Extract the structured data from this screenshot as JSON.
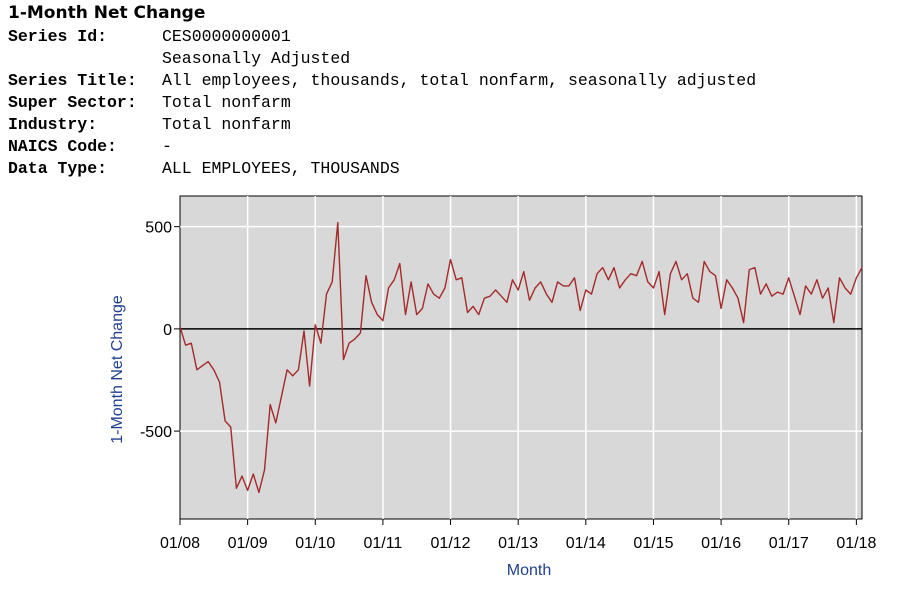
{
  "header": {
    "title": "1-Month Net Change",
    "fields": [
      {
        "label": "Series Id:",
        "value": "CES0000000001"
      },
      {
        "label": "",
        "value": "Seasonally Adjusted"
      },
      {
        "label": "Series Title:",
        "value": "All employees, thousands, total nonfarm, seasonally adjusted"
      },
      {
        "label": "Super Sector:",
        "value": "Total nonfarm"
      },
      {
        "label": "Industry:",
        "value": "Total nonfarm"
      },
      {
        "label": "NAICS Code:",
        "value": "-"
      },
      {
        "label": "Data Type:",
        "value": "ALL EMPLOYEES, THOUSANDS"
      }
    ]
  },
  "chart_data": {
    "type": "line",
    "title": "",
    "xlabel": "Month",
    "ylabel": "1-Month Net Change",
    "xlim": [
      "2008-01",
      "2018-02"
    ],
    "ylim": [
      -930,
      650
    ],
    "yticks": [
      500,
      0,
      -500
    ],
    "xticks": [
      "01/08",
      "01/09",
      "01/10",
      "01/11",
      "01/12",
      "01/13",
      "01/14",
      "01/15",
      "01/16",
      "01/17",
      "01/18"
    ],
    "grid": true,
    "zero_line": true,
    "series": [
      {
        "name": "",
        "color": "#a52a2a",
        "x": [
          "2008-01",
          "2008-02",
          "2008-03",
          "2008-04",
          "2008-05",
          "2008-06",
          "2008-07",
          "2008-08",
          "2008-09",
          "2008-10",
          "2008-11",
          "2008-12",
          "2009-01",
          "2009-02",
          "2009-03",
          "2009-04",
          "2009-05",
          "2009-06",
          "2009-07",
          "2009-08",
          "2009-09",
          "2009-10",
          "2009-11",
          "2009-12",
          "2010-01",
          "2010-02",
          "2010-03",
          "2010-04",
          "2010-05",
          "2010-06",
          "2010-07",
          "2010-08",
          "2010-09",
          "2010-10",
          "2010-11",
          "2010-12",
          "2011-01",
          "2011-02",
          "2011-03",
          "2011-04",
          "2011-05",
          "2011-06",
          "2011-07",
          "2011-08",
          "2011-09",
          "2011-10",
          "2011-11",
          "2011-12",
          "2012-01",
          "2012-02",
          "2012-03",
          "2012-04",
          "2012-05",
          "2012-06",
          "2012-07",
          "2012-08",
          "2012-09",
          "2012-10",
          "2012-11",
          "2012-12",
          "2013-01",
          "2013-02",
          "2013-03",
          "2013-04",
          "2013-05",
          "2013-06",
          "2013-07",
          "2013-08",
          "2013-09",
          "2013-10",
          "2013-11",
          "2013-12",
          "2014-01",
          "2014-02",
          "2014-03",
          "2014-04",
          "2014-05",
          "2014-06",
          "2014-07",
          "2014-08",
          "2014-09",
          "2014-10",
          "2014-11",
          "2014-12",
          "2015-01",
          "2015-02",
          "2015-03",
          "2015-04",
          "2015-05",
          "2015-06",
          "2015-07",
          "2015-08",
          "2015-09",
          "2015-10",
          "2015-11",
          "2015-12",
          "2016-01",
          "2016-02",
          "2016-03",
          "2016-04",
          "2016-05",
          "2016-06",
          "2016-07",
          "2016-08",
          "2016-09",
          "2016-10",
          "2016-11",
          "2016-12",
          "2017-01",
          "2017-02",
          "2017-03",
          "2017-04",
          "2017-05",
          "2017-06",
          "2017-07",
          "2017-08",
          "2017-09",
          "2017-10",
          "2017-11",
          "2017-12",
          "2018-01",
          "2018-02"
        ],
        "values": [
          10,
          -80,
          -70,
          -200,
          -180,
          -160,
          -200,
          -260,
          -450,
          -480,
          -780,
          -720,
          -790,
          -710,
          -800,
          -690,
          -370,
          -460,
          -330,
          -200,
          -230,
          -200,
          -10,
          -280,
          20,
          -70,
          170,
          230,
          520,
          -150,
          -70,
          -50,
          -20,
          260,
          130,
          70,
          40,
          200,
          240,
          320,
          70,
          230,
          70,
          100,
          220,
          170,
          150,
          200,
          340,
          240,
          250,
          80,
          110,
          70,
          150,
          160,
          190,
          160,
          130,
          240,
          190,
          280,
          140,
          200,
          230,
          170,
          130,
          230,
          210,
          210,
          250,
          90,
          190,
          170,
          270,
          300,
          240,
          300,
          200,
          240,
          270,
          260,
          330,
          230,
          200,
          280,
          70,
          270,
          330,
          240,
          270,
          150,
          130,
          330,
          280,
          260,
          100,
          240,
          200,
          150,
          30,
          290,
          300,
          170,
          220,
          160,
          180,
          170,
          250,
          160,
          70,
          210,
          170,
          240,
          150,
          200,
          30,
          250,
          200,
          170,
          250,
          300
        ]
      }
    ]
  }
}
